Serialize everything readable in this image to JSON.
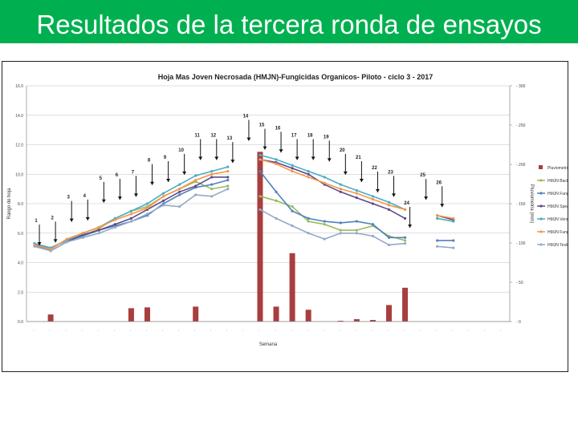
{
  "slide": {
    "title": "Resultados de la tercera ronda de ensayos",
    "title_bg": "#00b050",
    "title_color": "#ffffff"
  },
  "chart_data": {
    "type": "line",
    "title": "Hoja Mas Joven Necrosada (HMJN)-Fungicidas Organicos- Piloto - ciclo 3 - 2017",
    "xlabel": "Semana",
    "ylabel_left": "Rango de hoja",
    "ylabel_right": "Pluviometria (mm)",
    "y_left_ticks": [
      "0.0",
      "2.0",
      "4.0",
      "6.0",
      "8.0",
      "10.0",
      "12.0",
      "14.0",
      "16.0"
    ],
    "y_left_range": [
      0,
      16
    ],
    "y_right_ticks": [
      "0",
      "50",
      "100",
      "150",
      "200",
      "250",
      "300"
    ],
    "y_right_range": [
      0,
      300
    ],
    "grid": true,
    "legend_position": "right",
    "x_tick_count": 30,
    "series": [
      {
        "name": "Pluviometria",
        "kind": "bar",
        "axis": "right",
        "color": "#a93e3e",
        "values": [
          null,
          9,
          null,
          null,
          null,
          null,
          17,
          18,
          null,
          null,
          19,
          null,
          null,
          null,
          216,
          19,
          87,
          15,
          null,
          1,
          3,
          2,
          21,
          43,
          null,
          null,
          null,
          null,
          null,
          null
        ]
      },
      {
        "name": "HMJN Bactirus",
        "kind": "line",
        "axis": "left",
        "color": "#9bbb59",
        "values": [
          5.3,
          5.0,
          5.5,
          5.8,
          6.3,
          7.0,
          7.5,
          7.8,
          8.5,
          9.0,
          9.5,
          9.0,
          9.2,
          null,
          8.5,
          8.2,
          7.8,
          6.8,
          6.6,
          6.2,
          6.2,
          6.5,
          5.8,
          5.5,
          null,
          7.0,
          6.8,
          null,
          null,
          null
        ]
      },
      {
        "name": "HMJN Fungio-M",
        "kind": "line",
        "axis": "left",
        "color": "#4f81bd",
        "values": [
          5.2,
          5.0,
          5.5,
          5.8,
          6.2,
          6.5,
          6.8,
          7.2,
          8.0,
          8.6,
          9.1,
          9.3,
          9.6,
          null,
          10.2,
          8.8,
          7.5,
          7.0,
          6.8,
          6.7,
          6.8,
          6.6,
          5.7,
          5.7,
          null,
          5.5,
          5.5,
          null,
          null,
          null
        ]
      },
      {
        "name": "HMJN Speaker",
        "kind": "line",
        "axis": "left",
        "color": "#5c4b8a",
        "values": [
          5.2,
          4.8,
          5.4,
          5.9,
          6.2,
          6.6,
          7.0,
          7.6,
          8.2,
          8.8,
          9.2,
          9.8,
          9.8,
          null,
          11.0,
          10.8,
          10.4,
          10.0,
          9.3,
          8.8,
          8.4,
          8.0,
          7.6,
          7.0,
          null,
          7.2,
          6.9,
          null,
          null,
          null
        ]
      },
      {
        "name": "HMJN Versigard",
        "kind": "line",
        "axis": "left",
        "color": "#4bacc6",
        "values": [
          5.3,
          5.0,
          5.5,
          6.0,
          6.4,
          7.0,
          7.5,
          8.0,
          8.7,
          9.3,
          9.9,
          10.2,
          10.5,
          null,
          11.3,
          11.0,
          10.6,
          10.2,
          9.8,
          9.3,
          8.9,
          8.5,
          8.1,
          7.6,
          null,
          7.0,
          6.8,
          null,
          null,
          null
        ]
      },
      {
        "name": "HMJN Fungio-Pro",
        "kind": "line",
        "axis": "left",
        "color": "#f79646",
        "values": [
          5.2,
          4.9,
          5.6,
          6.0,
          6.4,
          6.9,
          7.3,
          7.7,
          8.5,
          9.0,
          9.6,
          10.0,
          10.2,
          null,
          11.0,
          10.7,
          10.2,
          9.8,
          9.4,
          9.0,
          8.7,
          8.3,
          7.9,
          7.6,
          null,
          7.2,
          7.0,
          null,
          null,
          null
        ]
      },
      {
        "name": "HMJN Testigo",
        "kind": "line",
        "axis": "left",
        "color": "#95a9c7",
        "values": [
          5.1,
          4.8,
          5.4,
          5.7,
          6.0,
          6.4,
          6.8,
          7.3,
          7.9,
          7.8,
          8.6,
          8.5,
          9.0,
          null,
          7.6,
          7.0,
          6.5,
          6.0,
          5.6,
          6.0,
          6.0,
          5.8,
          5.2,
          5.3,
          null,
          5.1,
          5.0,
          null,
          null,
          null
        ]
      }
    ],
    "annotations": [
      {
        "label": "1",
        "x": 0.8,
        "y": 6.8
      },
      {
        "label": "2",
        "x": 1.8,
        "y": 7.0
      },
      {
        "label": "3",
        "x": 2.8,
        "y": 8.4
      },
      {
        "label": "4",
        "x": 3.8,
        "y": 8.5
      },
      {
        "label": "5",
        "x": 4.8,
        "y": 9.7
      },
      {
        "label": "6",
        "x": 5.8,
        "y": 9.9
      },
      {
        "label": "7",
        "x": 6.8,
        "y": 10.1
      },
      {
        "label": "8",
        "x": 7.8,
        "y": 10.9
      },
      {
        "label": "9",
        "x": 8.8,
        "y": 11.1
      },
      {
        "label": "10",
        "x": 9.8,
        "y": 11.6
      },
      {
        "label": "11",
        "x": 10.8,
        "y": 12.6
      },
      {
        "label": "12",
        "x": 11.8,
        "y": 12.6
      },
      {
        "label": "13",
        "x": 12.8,
        "y": 12.4
      },
      {
        "label": "14",
        "x": 13.8,
        "y": 13.9
      },
      {
        "label": "15",
        "x": 14.8,
        "y": 13.3
      },
      {
        "label": "16",
        "x": 15.8,
        "y": 13.1
      },
      {
        "label": "17",
        "x": 16.8,
        "y": 12.6
      },
      {
        "label": "18",
        "x": 17.8,
        "y": 12.6
      },
      {
        "label": "19",
        "x": 18.8,
        "y": 12.5
      },
      {
        "label": "20",
        "x": 19.8,
        "y": 11.6
      },
      {
        "label": "21",
        "x": 20.8,
        "y": 11.1
      },
      {
        "label": "22",
        "x": 21.8,
        "y": 10.4
      },
      {
        "label": "23",
        "x": 22.8,
        "y": 10.1
      },
      {
        "label": "24",
        "x": 23.8,
        "y": 8.0
      },
      {
        "label": "25",
        "x": 24.8,
        "y": 9.9
      },
      {
        "label": "26",
        "x": 25.8,
        "y": 9.4
      }
    ]
  }
}
